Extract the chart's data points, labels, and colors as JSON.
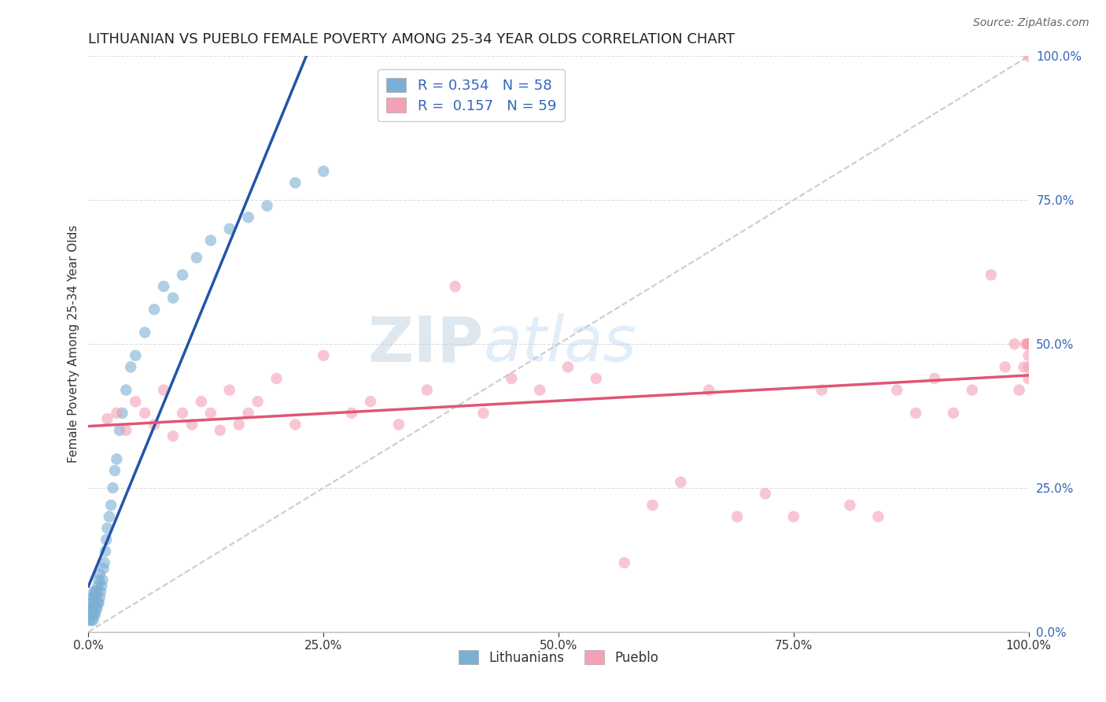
{
  "title": "LITHUANIAN VS PUEBLO FEMALE POVERTY AMONG 25-34 YEAR OLDS CORRELATION CHART",
  "source_text": "Source: ZipAtlas.com",
  "ylabel": "Female Poverty Among 25-34 Year Olds",
  "xlim": [
    0,
    1
  ],
  "ylim": [
    0,
    1
  ],
  "xticks": [
    0.0,
    0.25,
    0.5,
    0.75,
    1.0
  ],
  "yticks": [
    0.0,
    0.25,
    0.5,
    0.75,
    1.0
  ],
  "xtick_labels": [
    "0.0%",
    "25.0%",
    "50.0%",
    "75.0%",
    "100.0%"
  ],
  "ytick_labels": [
    "0.0%",
    "25.0%",
    "50.0%",
    "75.0%",
    "100.0%"
  ],
  "blue_color": "#7BAFD4",
  "pink_color": "#F4A0B5",
  "blue_line_color": "#2255AA",
  "pink_line_color": "#E05575",
  "r_blue": 0.354,
  "n_blue": 58,
  "r_pink": 0.157,
  "n_pink": 59,
  "legend_label_blue": "Lithuanians",
  "legend_label_pink": "Pueblo",
  "blue_scatter_x": [
    0.001,
    0.002,
    0.002,
    0.003,
    0.003,
    0.003,
    0.004,
    0.004,
    0.004,
    0.005,
    0.005,
    0.005,
    0.006,
    0.006,
    0.006,
    0.007,
    0.007,
    0.007,
    0.008,
    0.008,
    0.009,
    0.009,
    0.01,
    0.01,
    0.011,
    0.011,
    0.012,
    0.012,
    0.013,
    0.014,
    0.015,
    0.016,
    0.017,
    0.018,
    0.019,
    0.02,
    0.022,
    0.024,
    0.026,
    0.028,
    0.03,
    0.033,
    0.036,
    0.04,
    0.045,
    0.05,
    0.06,
    0.07,
    0.08,
    0.09,
    0.1,
    0.115,
    0.13,
    0.15,
    0.17,
    0.19,
    0.22,
    0.25
  ],
  "blue_scatter_y": [
    0.02,
    0.03,
    0.04,
    0.02,
    0.03,
    0.05,
    0.03,
    0.04,
    0.06,
    0.02,
    0.04,
    0.06,
    0.03,
    0.05,
    0.07,
    0.03,
    0.05,
    0.07,
    0.04,
    0.06,
    0.04,
    0.07,
    0.05,
    0.08,
    0.05,
    0.09,
    0.06,
    0.1,
    0.07,
    0.08,
    0.09,
    0.11,
    0.12,
    0.14,
    0.16,
    0.18,
    0.2,
    0.22,
    0.25,
    0.28,
    0.3,
    0.35,
    0.38,
    0.42,
    0.46,
    0.48,
    0.52,
    0.56,
    0.6,
    0.58,
    0.62,
    0.65,
    0.68,
    0.7,
    0.72,
    0.74,
    0.78,
    0.8
  ],
  "pink_scatter_x": [
    0.02,
    0.03,
    0.04,
    0.05,
    0.06,
    0.07,
    0.08,
    0.09,
    0.1,
    0.11,
    0.12,
    0.13,
    0.14,
    0.15,
    0.16,
    0.17,
    0.18,
    0.2,
    0.22,
    0.25,
    0.28,
    0.3,
    0.33,
    0.36,
    0.39,
    0.42,
    0.45,
    0.48,
    0.51,
    0.54,
    0.57,
    0.6,
    0.63,
    0.66,
    0.69,
    0.72,
    0.75,
    0.78,
    0.81,
    0.84,
    0.86,
    0.88,
    0.9,
    0.92,
    0.94,
    0.96,
    0.975,
    0.985,
    0.99,
    0.995,
    0.997,
    0.999,
    1.0,
    1.0,
    1.0,
    1.0,
    1.0,
    1.0,
    1.0
  ],
  "pink_scatter_y": [
    0.37,
    0.38,
    0.35,
    0.4,
    0.38,
    0.36,
    0.42,
    0.34,
    0.38,
    0.36,
    0.4,
    0.38,
    0.35,
    0.42,
    0.36,
    0.38,
    0.4,
    0.44,
    0.36,
    0.48,
    0.38,
    0.4,
    0.36,
    0.42,
    0.6,
    0.38,
    0.44,
    0.42,
    0.46,
    0.44,
    0.12,
    0.22,
    0.26,
    0.42,
    0.2,
    0.24,
    0.2,
    0.42,
    0.22,
    0.2,
    0.42,
    0.38,
    0.44,
    0.38,
    0.42,
    0.62,
    0.46,
    0.5,
    0.42,
    0.46,
    0.5,
    0.5,
    1.0,
    0.5,
    0.46,
    0.5,
    0.48,
    0.44,
    0.5
  ]
}
